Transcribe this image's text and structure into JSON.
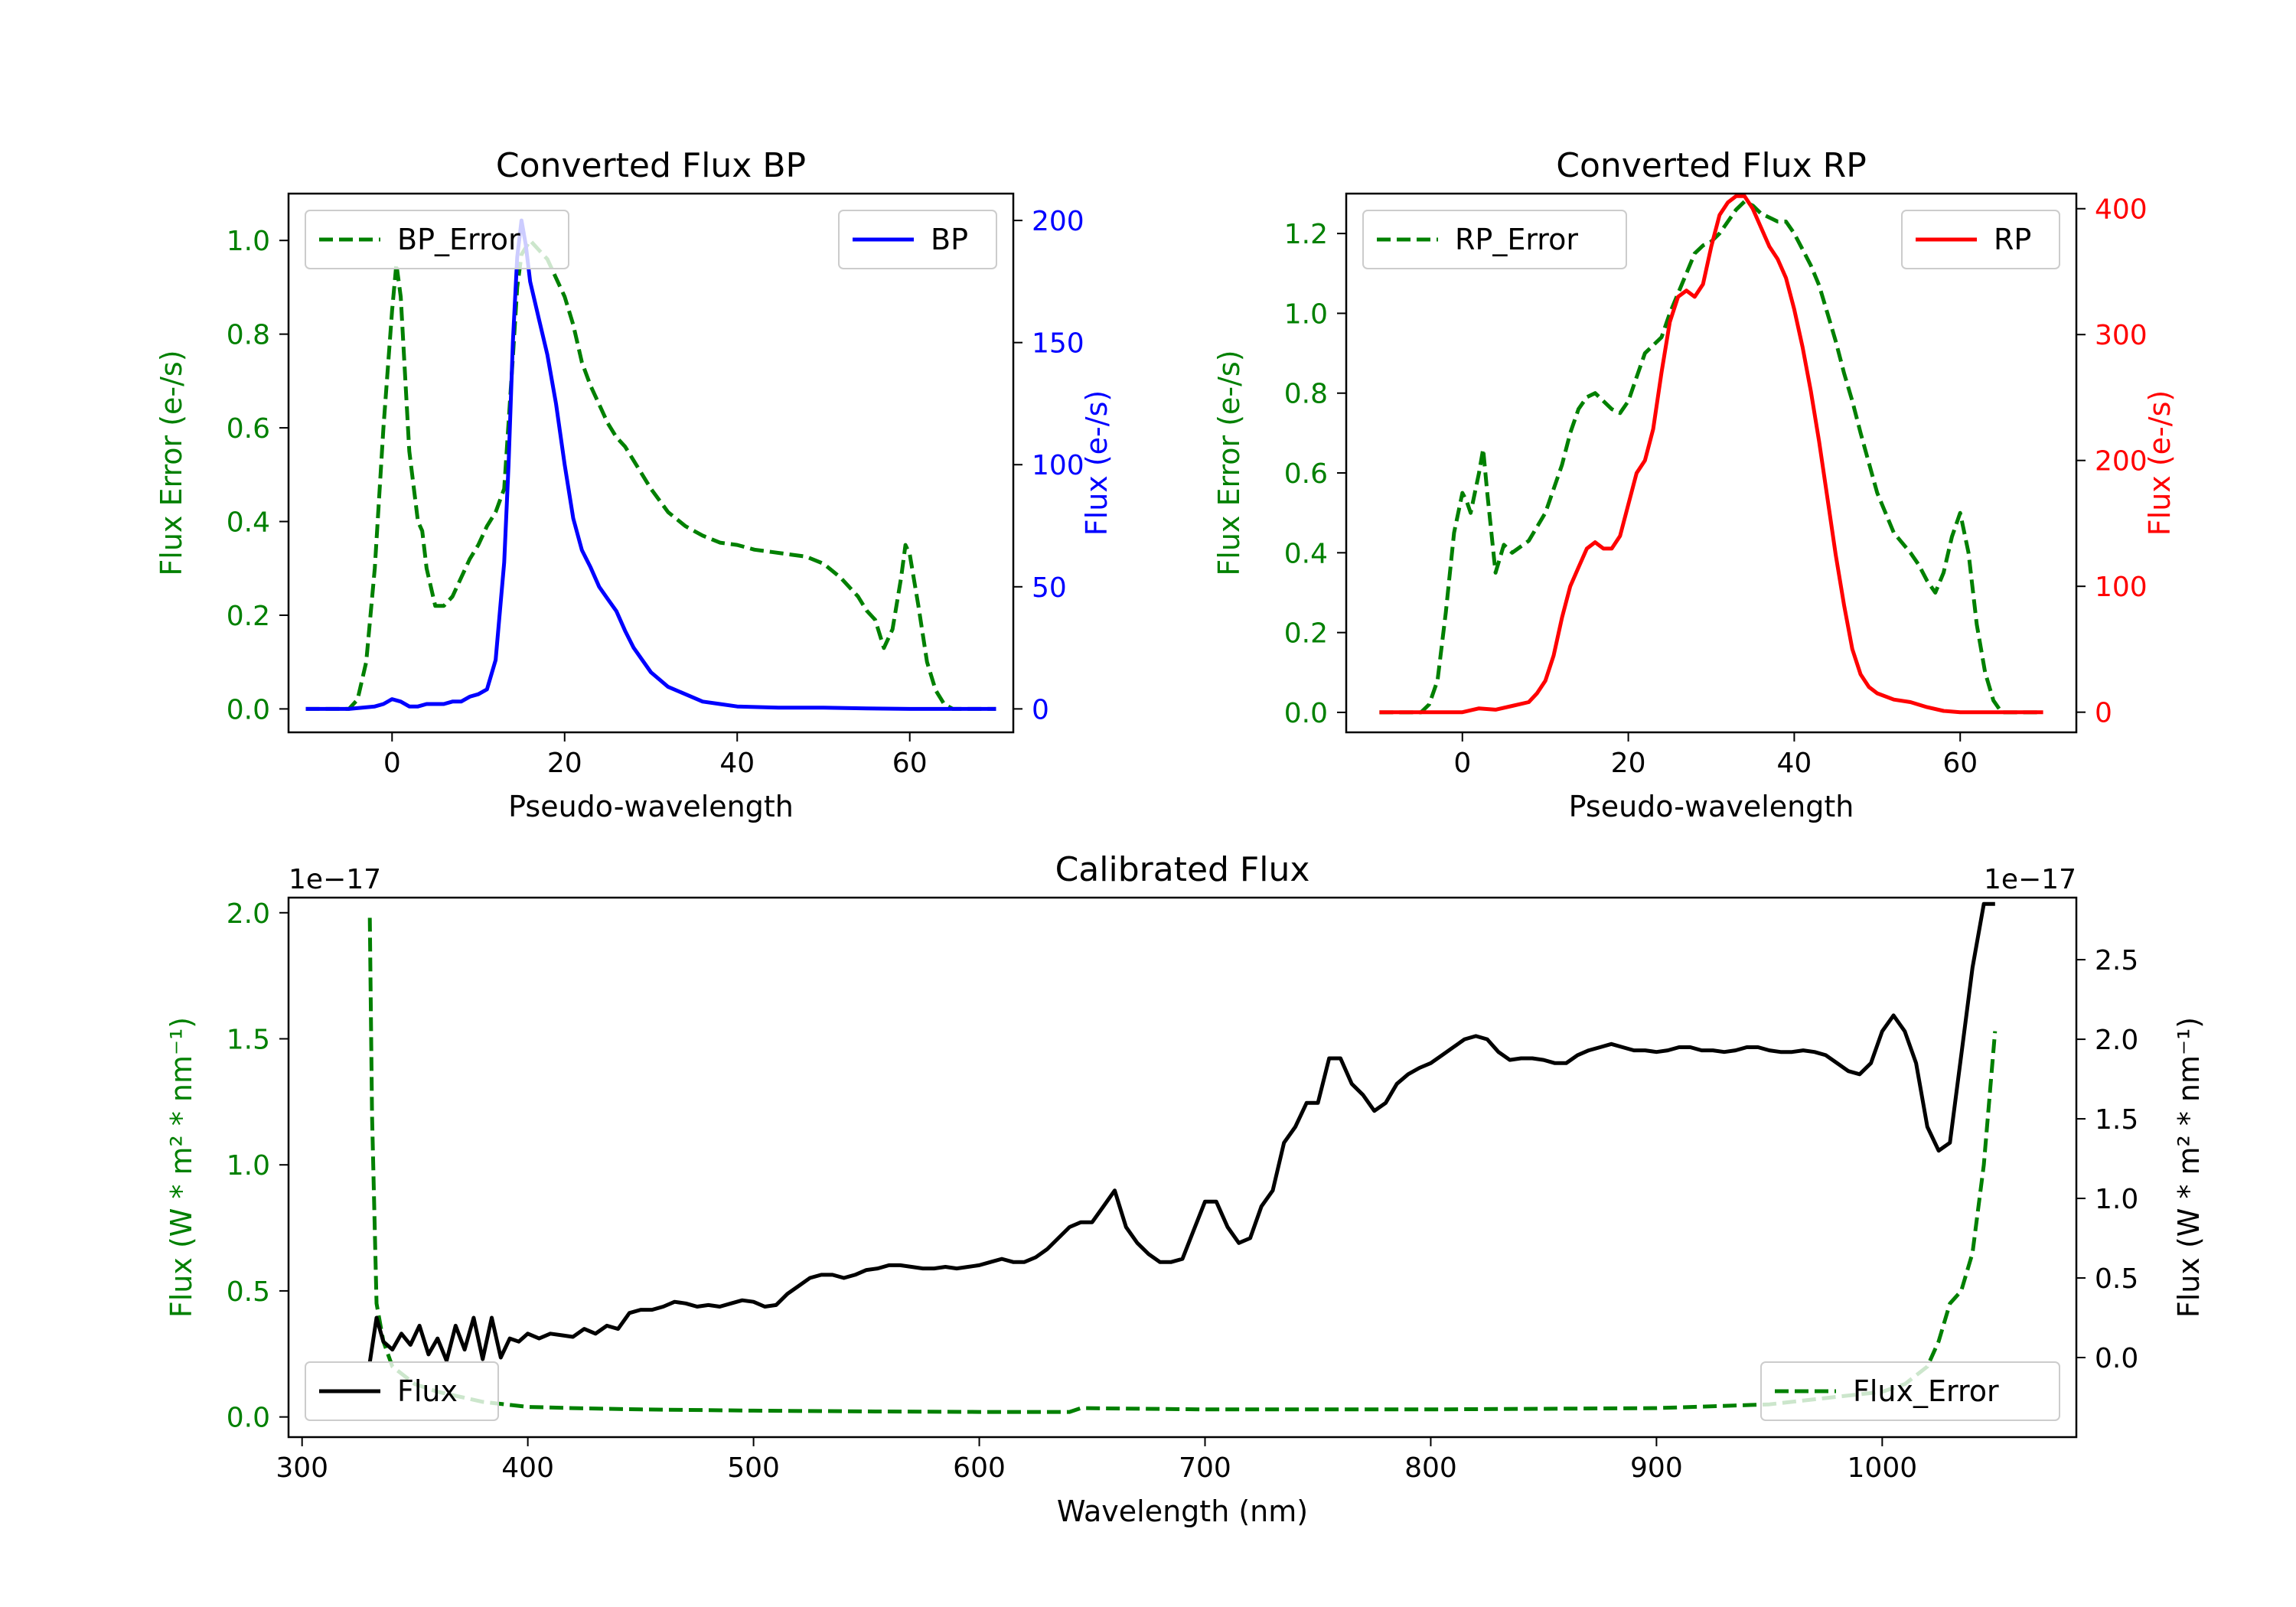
{
  "colors": {
    "green": "#008000",
    "blue": "#0000ff",
    "red": "#ff0000",
    "black": "#000000"
  },
  "chart_data": [
    {
      "type": "line",
      "title": "Converted Flux BP",
      "xlabel": "Pseudo-wavelength",
      "ylabel_left": "Flux Error (e-/s)",
      "ylabel_right": "Flux (e-/s)",
      "xlim": [
        -12,
        72
      ],
      "ylim_left": [
        -0.05,
        1.1
      ],
      "ylim_right": [
        -9.6,
        211
      ],
      "xticks": [
        "0",
        "20",
        "40",
        "60"
      ],
      "yticks_left": [
        "0.0",
        "0.2",
        "0.4",
        "0.6",
        "0.8",
        "1.0"
      ],
      "yticks_right": [
        "0",
        "50",
        "100",
        "150",
        "200"
      ],
      "legend_left": "BP_Error",
      "legend_right": "BP",
      "series": [
        {
          "name": "BP_Error",
          "axis": "left",
          "style": "dashed",
          "color": "#008000",
          "x": [
            -10,
            -5,
            -4,
            -3,
            -2,
            -1,
            0,
            0.5,
            1,
            2,
            3,
            3.5,
            4,
            5,
            6,
            7,
            8,
            9,
            10,
            11,
            12,
            13,
            14,
            14.5,
            15,
            16,
            17,
            18,
            19,
            20,
            21,
            22,
            23,
            24,
            25,
            26,
            27,
            28,
            30,
            32,
            34,
            36,
            38,
            40,
            42,
            44,
            46,
            48,
            50,
            52,
            54,
            55,
            56,
            57,
            58,
            59,
            59.5,
            60,
            61,
            62,
            63,
            64,
            65,
            67,
            70
          ],
          "values": [
            0,
            0,
            0.02,
            0.1,
            0.3,
            0.6,
            0.85,
            0.95,
            0.88,
            0.55,
            0.4,
            0.38,
            0.3,
            0.22,
            0.22,
            0.24,
            0.28,
            0.32,
            0.35,
            0.39,
            0.42,
            0.47,
            0.75,
            0.9,
            0.97,
            1.0,
            0.98,
            0.96,
            0.92,
            0.88,
            0.82,
            0.74,
            0.69,
            0.65,
            0.61,
            0.58,
            0.56,
            0.53,
            0.47,
            0.42,
            0.39,
            0.37,
            0.355,
            0.35,
            0.34,
            0.335,
            0.33,
            0.325,
            0.31,
            0.28,
            0.24,
            0.21,
            0.19,
            0.13,
            0.17,
            0.28,
            0.35,
            0.33,
            0.22,
            0.1,
            0.04,
            0.01,
            0,
            0,
            0
          ]
        },
        {
          "name": "BP",
          "axis": "right",
          "style": "solid",
          "color": "#0000ff",
          "x": [
            -10,
            -5,
            -2,
            -1,
            0,
            1,
            2,
            3,
            4,
            5,
            6,
            7,
            8,
            9,
            10,
            11,
            12,
            13,
            13.5,
            14,
            14.5,
            15,
            15.5,
            16,
            17,
            18,
            19,
            20,
            21,
            22,
            23,
            24,
            25,
            26,
            27,
            28,
            30,
            32,
            34,
            36,
            38,
            40,
            45,
            50,
            55,
            60,
            65,
            70
          ],
          "values": [
            0,
            0,
            1,
            2,
            4,
            3,
            1,
            1,
            2,
            2,
            2,
            3,
            3,
            5,
            6,
            8,
            20,
            60,
            100,
            150,
            185,
            200,
            190,
            175,
            160,
            145,
            125,
            100,
            78,
            65,
            58,
            50,
            45,
            40,
            32,
            25,
            15,
            9,
            6,
            3,
            2,
            1,
            0.5,
            0.5,
            0.2,
            0,
            0,
            0
          ]
        }
      ]
    },
    {
      "type": "line",
      "title": "Converted Flux RP",
      "xlabel": "Pseudo-wavelength",
      "ylabel_left": "Flux Error (e-/s)",
      "ylabel_right": "Flux (e-/s)",
      "xlim": [
        -14,
        74
      ],
      "ylim_left": [
        -0.05,
        1.3
      ],
      "ylim_right": [
        -16,
        412
      ],
      "xticks": [
        "0",
        "20",
        "40",
        "60"
      ],
      "yticks_left": [
        "0.0",
        "0.2",
        "0.4",
        "0.6",
        "0.8",
        "1.0",
        "1.2"
      ],
      "yticks_right": [
        "0",
        "100",
        "200",
        "300",
        "400"
      ],
      "legend_left": "RP_Error",
      "legend_right": "RP",
      "series": [
        {
          "name": "RP_Error",
          "axis": "left",
          "style": "dashed",
          "color": "#008000",
          "x": [
            -10,
            -5,
            -4,
            -3,
            -2,
            -1,
            0,
            0.5,
            1,
            2,
            2.5,
            3,
            4,
            5,
            6,
            8,
            10,
            12,
            13,
            14,
            15,
            16,
            17,
            18,
            19,
            20,
            21,
            22,
            23,
            24,
            25,
            26,
            27,
            28,
            29,
            30,
            31,
            32,
            33,
            34,
            35,
            36,
            37,
            38,
            39,
            40,
            41,
            42,
            43,
            44,
            45,
            46,
            47,
            48,
            50,
            52,
            54,
            55,
            56,
            57,
            58,
            59,
            60,
            61,
            62,
            63,
            64,
            65,
            70
          ],
          "values": [
            0,
            0,
            0.02,
            0.08,
            0.25,
            0.45,
            0.55,
            0.53,
            0.5,
            0.6,
            0.66,
            0.55,
            0.35,
            0.42,
            0.4,
            0.43,
            0.5,
            0.62,
            0.7,
            0.76,
            0.79,
            0.8,
            0.78,
            0.76,
            0.75,
            0.78,
            0.84,
            0.9,
            0.92,
            0.94,
            1.0,
            1.05,
            1.1,
            1.15,
            1.17,
            1.18,
            1.2,
            1.23,
            1.26,
            1.28,
            1.27,
            1.25,
            1.24,
            1.23,
            1.23,
            1.2,
            1.16,
            1.12,
            1.07,
            1.0,
            0.93,
            0.85,
            0.78,
            0.7,
            0.55,
            0.45,
            0.4,
            0.37,
            0.33,
            0.3,
            0.35,
            0.44,
            0.5,
            0.4,
            0.22,
            0.1,
            0.03,
            0,
            0
          ]
        },
        {
          "name": "RP",
          "axis": "right",
          "style": "solid",
          "color": "#ff0000",
          "x": [
            -10,
            0,
            2,
            4,
            6,
            8,
            9,
            10,
            11,
            12,
            13,
            14,
            15,
            16,
            17,
            18,
            19,
            20,
            21,
            22,
            23,
            24,
            25,
            26,
            27,
            28,
            29,
            30,
            31,
            32,
            33,
            34,
            35,
            36,
            37,
            38,
            39,
            40,
            41,
            42,
            43,
            44,
            45,
            46,
            47,
            48,
            49,
            50,
            52,
            54,
            56,
            58,
            60,
            65,
            70
          ],
          "values": [
            0,
            0,
            3,
            2,
            5,
            8,
            15,
            25,
            45,
            75,
            100,
            115,
            130,
            135,
            130,
            130,
            140,
            165,
            190,
            200,
            225,
            270,
            310,
            330,
            335,
            330,
            340,
            370,
            395,
            405,
            410,
            410,
            400,
            385,
            370,
            360,
            345,
            320,
            290,
            255,
            215,
            170,
            125,
            85,
            50,
            30,
            20,
            15,
            10,
            8,
            4,
            1,
            0,
            0,
            0
          ]
        }
      ]
    },
    {
      "type": "line",
      "title": "Calibrated Flux",
      "xlabel": "Wavelength (nm)",
      "ylabel_left": "Flux (W * m² * nm⁻¹)",
      "ylabel_right": "Flux (W * m² * nm⁻¹)",
      "offset_left": "1e−17",
      "offset_right": "1e−17",
      "xlim": [
        294,
        1086
      ],
      "ylim_left": [
        -0.08,
        2.06
      ],
      "ylim_right": [
        -0.5,
        2.89
      ],
      "xticks": [
        "300",
        "400",
        "500",
        "600",
        "700",
        "800",
        "900",
        "1000"
      ],
      "yticks_left": [
        "0.0",
        "0.5",
        "1.0",
        "1.5",
        "2.0"
      ],
      "yticks_right": [
        "0.0",
        "0.5",
        "1.0",
        "1.5",
        "2.0",
        "2.5"
      ],
      "legend_left": "Flux",
      "legend_right": "Flux_Error",
      "series": [
        {
          "name": "Flux_Error",
          "axis": "left",
          "style": "dashed",
          "color": "#008000",
          "x": [
            330,
            331,
            333,
            336,
            340,
            350,
            360,
            370,
            380,
            390,
            400,
            420,
            450,
            500,
            550,
            600,
            640,
            645,
            700,
            800,
            900,
            950,
            1000,
            1010,
            1020,
            1025,
            1030,
            1035,
            1040,
            1045,
            1050
          ],
          "values": [
            1.98,
            1.2,
            0.45,
            0.3,
            0.2,
            0.13,
            0.1,
            0.08,
            0.06,
            0.05,
            0.04,
            0.035,
            0.03,
            0.025,
            0.022,
            0.02,
            0.02,
            0.035,
            0.03,
            0.03,
            0.035,
            0.05,
            0.1,
            0.13,
            0.2,
            0.3,
            0.45,
            0.5,
            0.65,
            1.0,
            1.53
          ]
        },
        {
          "name": "Flux",
          "axis": "right",
          "style": "solid",
          "color": "#000000",
          "x": [
            330,
            333,
            336,
            340,
            344,
            348,
            352,
            356,
            360,
            364,
            368,
            372,
            376,
            380,
            384,
            388,
            392,
            396,
            400,
            405,
            410,
            415,
            420,
            425,
            430,
            435,
            440,
            445,
            450,
            455,
            460,
            465,
            470,
            475,
            480,
            485,
            490,
            495,
            500,
            505,
            510,
            515,
            520,
            525,
            530,
            535,
            540,
            545,
            550,
            555,
            560,
            565,
            570,
            575,
            580,
            585,
            590,
            595,
            600,
            605,
            610,
            615,
            620,
            625,
            630,
            635,
            640,
            645,
            650,
            655,
            660,
            665,
            670,
            675,
            680,
            685,
            690,
            695,
            700,
            705,
            710,
            715,
            720,
            725,
            730,
            735,
            740,
            745,
            750,
            755,
            760,
            765,
            770,
            775,
            780,
            785,
            790,
            795,
            800,
            805,
            810,
            815,
            820,
            825,
            830,
            835,
            840,
            845,
            850,
            855,
            860,
            865,
            870,
            875,
            880,
            885,
            890,
            895,
            900,
            905,
            910,
            915,
            920,
            925,
            930,
            935,
            940,
            945,
            950,
            955,
            960,
            965,
            970,
            975,
            980,
            985,
            990,
            995,
            1000,
            1005,
            1010,
            1015,
            1020,
            1025,
            1030,
            1035,
            1040,
            1045,
            1050
          ],
          "values": [
            -0.03,
            0.25,
            0.1,
            0.05,
            0.15,
            0.08,
            0.2,
            0.02,
            0.12,
            -0.02,
            0.2,
            0.05,
            0.25,
            -0.01,
            0.25,
            0.0,
            0.12,
            0.1,
            0.15,
            0.12,
            0.15,
            0.14,
            0.13,
            0.18,
            0.15,
            0.2,
            0.18,
            0.28,
            0.3,
            0.3,
            0.32,
            0.35,
            0.34,
            0.32,
            0.33,
            0.32,
            0.34,
            0.36,
            0.35,
            0.32,
            0.33,
            0.4,
            0.45,
            0.5,
            0.52,
            0.52,
            0.5,
            0.52,
            0.55,
            0.56,
            0.58,
            0.58,
            0.57,
            0.56,
            0.56,
            0.57,
            0.56,
            0.57,
            0.58,
            0.6,
            0.62,
            0.6,
            0.6,
            0.63,
            0.68,
            0.75,
            0.82,
            0.85,
            0.85,
            0.95,
            1.05,
            0.82,
            0.72,
            0.65,
            0.6,
            0.6,
            0.62,
            0.8,
            0.98,
            0.98,
            0.82,
            0.72,
            0.75,
            0.95,
            1.05,
            1.35,
            1.45,
            1.6,
            1.6,
            1.88,
            1.88,
            1.72,
            1.65,
            1.55,
            1.6,
            1.72,
            1.78,
            1.82,
            1.85,
            1.9,
            1.95,
            2.0,
            2.02,
            2.0,
            1.92,
            1.87,
            1.88,
            1.88,
            1.87,
            1.85,
            1.85,
            1.9,
            1.93,
            1.95,
            1.97,
            1.95,
            1.93,
            1.93,
            1.92,
            1.93,
            1.95,
            1.95,
            1.93,
            1.93,
            1.92,
            1.93,
            1.95,
            1.95,
            1.93,
            1.92,
            1.92,
            1.93,
            1.92,
            1.9,
            1.85,
            1.8,
            1.78,
            1.85,
            2.05,
            2.15,
            2.05,
            1.85,
            1.45,
            1.3,
            1.35,
            1.9,
            2.45,
            2.85,
            2.85
          ]
        }
      ]
    }
  ]
}
